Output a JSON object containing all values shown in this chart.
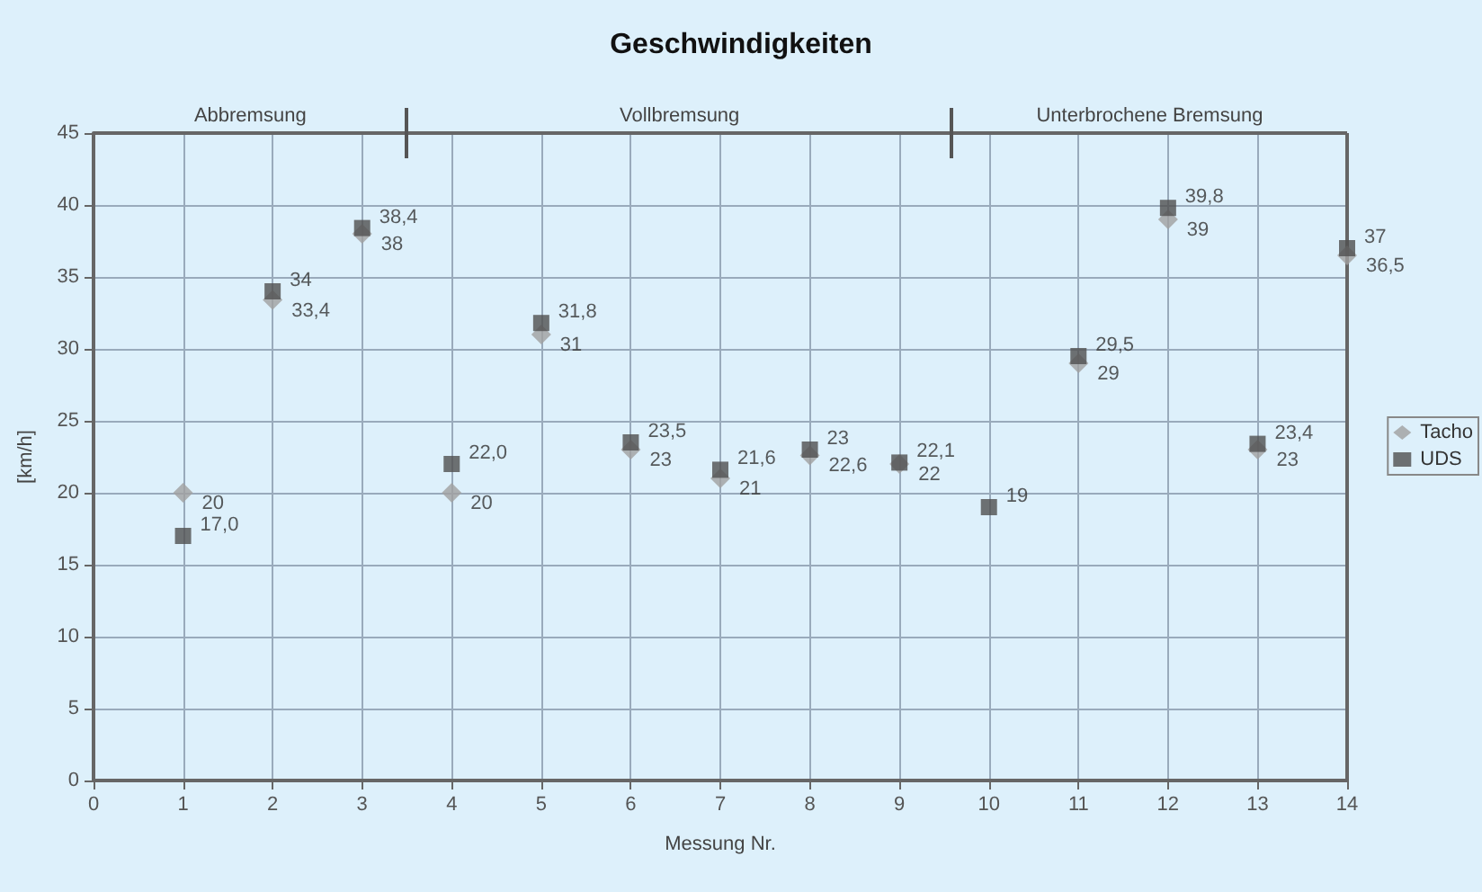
{
  "chart_data": {
    "type": "scatter",
    "title": "Geschwindigkeiten",
    "xlabel": "Messung Nr.",
    "ylabel": "[km/h]",
    "x": [
      1,
      2,
      3,
      4,
      5,
      6,
      7,
      8,
      9,
      10,
      11,
      12,
      13,
      14
    ],
    "series": [
      {
        "name": "Tacho",
        "color": "#a0a0a0",
        "marker": "diamond",
        "values": [
          20,
          33.4,
          38,
          20,
          31,
          23,
          21,
          22.6,
          22,
          null,
          29,
          39,
          23,
          36.5
        ],
        "value_labels": [
          "20",
          "33,4",
          "38",
          "20",
          "31",
          "23",
          "21",
          "22,6",
          "22",
          null,
          "29",
          "39",
          "23",
          "36,5"
        ]
      },
      {
        "name": "UDS",
        "color": "#505050",
        "marker": "square",
        "values": [
          17,
          34,
          38.4,
          22,
          31.8,
          23.5,
          21.6,
          23,
          22.1,
          19,
          29.5,
          39.8,
          23.4,
          37
        ],
        "value_labels": [
          "17,0",
          "34",
          "38,4",
          "22,0",
          "31,8",
          "23,5",
          "21,6",
          "23",
          "22,1",
          "19",
          "29,5",
          "39,8",
          "23,4",
          "37"
        ]
      }
    ],
    "annotations": [
      "Abbremsung",
      "Vollbremsung",
      "Unterbrochene Bremsung"
    ],
    "xlim": [
      0,
      14
    ],
    "xticks": [
      0,
      1,
      2,
      3,
      4,
      5,
      6,
      7,
      8,
      9,
      10,
      11,
      12,
      13,
      14
    ],
    "ylim": [
      0,
      45
    ],
    "yticks": [
      0,
      5,
      10,
      15,
      20,
      25,
      30,
      35,
      40,
      45
    ],
    "grid": true,
    "legend": "right"
  }
}
